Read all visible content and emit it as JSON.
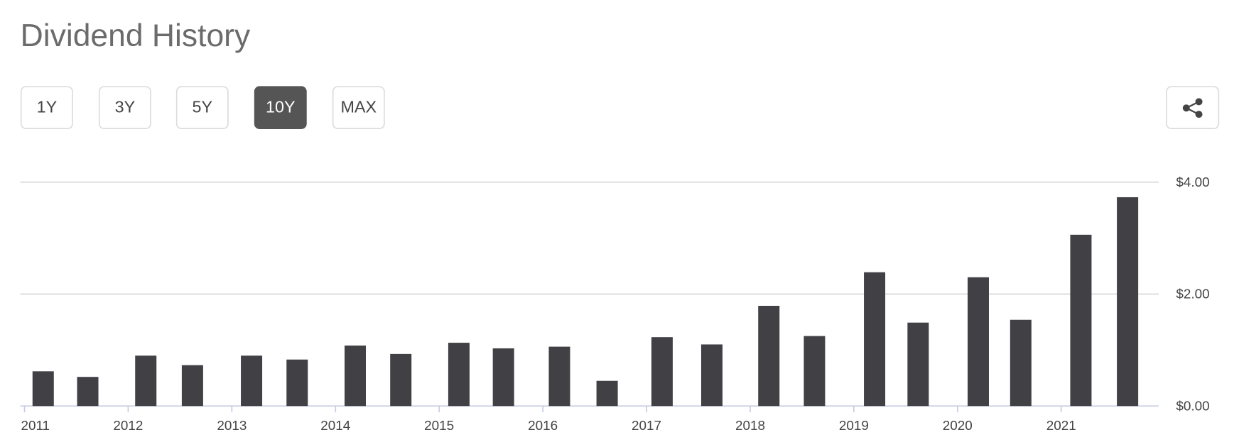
{
  "range_buttons": [
    "1Y",
    "3Y",
    "5Y",
    "10Y",
    "MAX"
  ],
  "selected_range": "10Y",
  "chart_data": {
    "type": "bar",
    "title": "Dividend History",
    "series": [
      {
        "color": "#414045",
        "x": [
          2011.18,
          2011.61,
          2012.17,
          2012.62,
          2013.19,
          2013.63,
          2014.19,
          2014.63,
          2015.19,
          2015.62,
          2016.16,
          2016.62,
          2017.15,
          2017.63,
          2018.18,
          2018.62,
          2019.2,
          2019.62,
          2020.2,
          2020.61,
          2021.19,
          2021.64
        ],
        "values": [
          0.62,
          0.52,
          0.9,
          0.73,
          0.9,
          0.83,
          1.08,
          0.93,
          1.13,
          1.03,
          1.06,
          0.45,
          1.23,
          1.1,
          1.79,
          1.25,
          2.39,
          1.49,
          2.3,
          1.54,
          3.06,
          3.73
        ]
      }
    ],
    "xlim": [
      2010.96,
      2021.94
    ],
    "xticks": [
      2011,
      2012,
      2013,
      2014,
      2015,
      2016,
      2017,
      2018,
      2019,
      2020,
      2021
    ],
    "ylim": [
      0,
      4
    ],
    "yticks": [
      {
        "value": 0,
        "label": "$0.00"
      },
      {
        "value": 2,
        "label": "$2.00"
      },
      {
        "value": 4,
        "label": "$4.00"
      }
    ],
    "grid": true
  }
}
